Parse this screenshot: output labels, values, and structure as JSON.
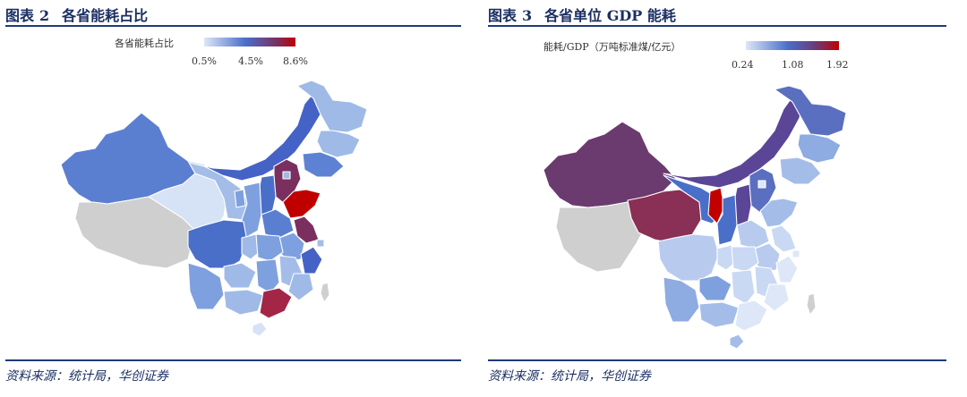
{
  "figure2": {
    "title_prefix": "图表",
    "number": "2",
    "title": "各省能耗占比",
    "legend_label": "各省能耗占比",
    "legend_ticks": [
      "0.5%",
      "4.5%",
      "8.6%"
    ],
    "colors": {
      "low": "#dde7f7",
      "mid": "#4a6fc9",
      "high": "#c00000"
    },
    "source": "资料来源：统计局，华创证券"
  },
  "figure3": {
    "title_prefix": "图表",
    "number": "3",
    "title": "各省单位 GDP 能耗",
    "legend_label": "能耗/GDP（万吨标准煤/亿元）",
    "legend_ticks": [
      "0.24",
      "1.08",
      "1.92"
    ],
    "colors": {
      "low": "#dde7f7",
      "mid": "#4a6fc9",
      "mid2": "#6b3a78",
      "high": "#c00000"
    },
    "source": "资料来源：统计局，华创证券"
  },
  "palette": {
    "title_color": "#1b2f63",
    "rule_color": "#1e3a78",
    "no_data": "#cfcfcf"
  }
}
